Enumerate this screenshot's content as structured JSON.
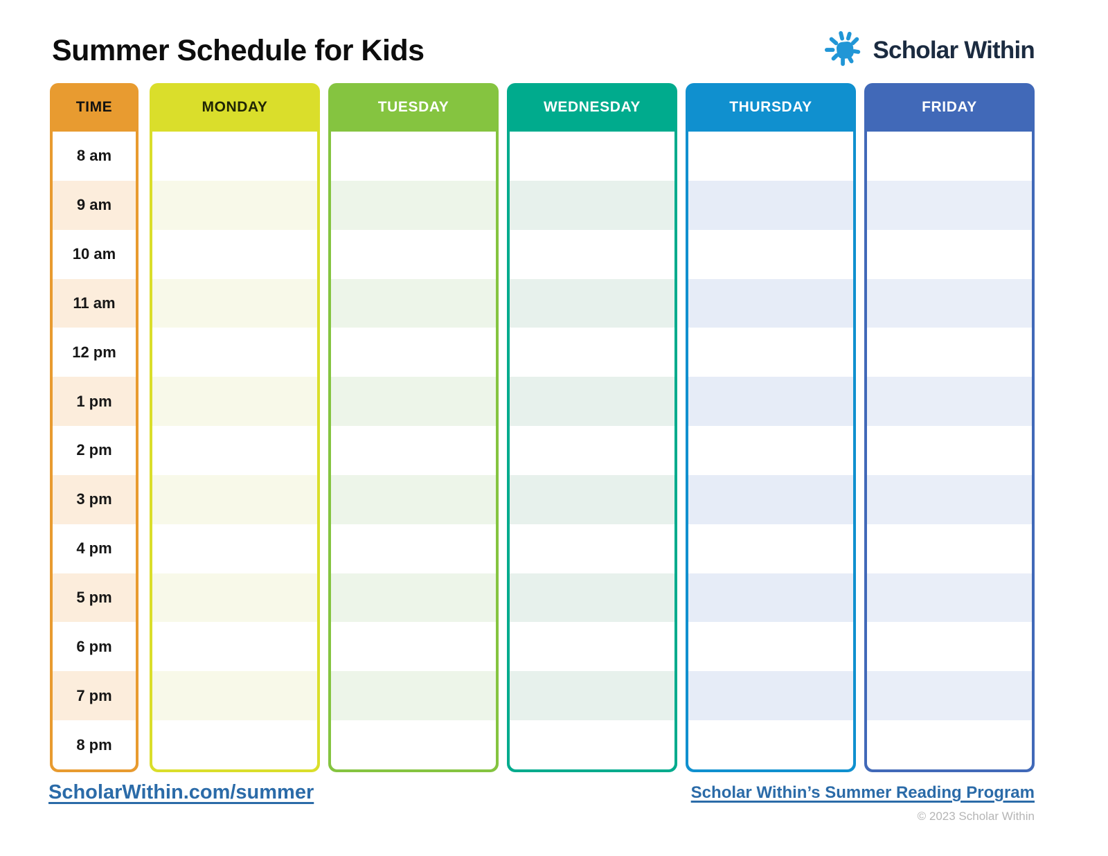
{
  "header": {
    "title": "Summer Schedule for Kids",
    "logo_text": "Scholar Within",
    "logo_sun_color": "#2196D6",
    "logo_text_color": "#1B2B40"
  },
  "schedule": {
    "time_column": {
      "header": "TIME",
      "color": "#E89B30",
      "stripe_color": "#FCEDDC",
      "header_text_color": "#121212",
      "times": [
        "8 am",
        "9 am",
        "10 am",
        "11 am",
        "12 pm",
        "1 pm",
        "2 pm",
        "3 pm",
        "4 pm",
        "5 pm",
        "6 pm",
        "7 pm",
        "8 pm"
      ]
    },
    "day_columns": [
      {
        "label": "MONDAY",
        "color": "#DADE2B",
        "stripe_color": "#F8F9E9",
        "header_text_color": "#202505"
      },
      {
        "label": "TUESDAY",
        "color": "#85C440",
        "stripe_color": "#EDF5E9",
        "header_text_color": "#FFFFFF"
      },
      {
        "label": "WEDNESDAY",
        "color": "#00AB8D",
        "stripe_color": "#E7F1EC",
        "header_text_color": "#FFFFFF"
      },
      {
        "label": "THURSDAY",
        "color": "#1090CF",
        "stripe_color": "#E6ECF7",
        "header_text_color": "#FFFFFF"
      },
      {
        "label": "FRIDAY",
        "color": "#4169B8",
        "stripe_color": "#E9EEF8",
        "header_text_color": "#FFFFFF"
      }
    ]
  },
  "footer": {
    "left_link": "ScholarWithin.com/summer",
    "right_link": "Scholar Within’s Summer Reading Program",
    "copyright": "© 2023 Scholar Within"
  }
}
